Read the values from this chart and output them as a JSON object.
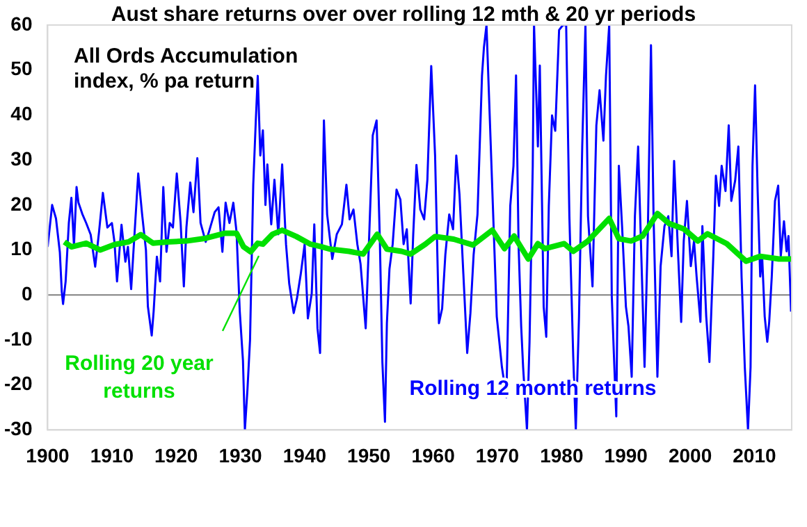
{
  "chart_data": {
    "type": "line",
    "title": "Aust share returns over over rolling 12 mth & 20 yr periods",
    "annotations": [
      "All Ords Accumulation index, % pa return"
    ],
    "xlim": [
      1900,
      2015.8
    ],
    "xticks": [
      1900,
      1910,
      1920,
      1930,
      1940,
      1950,
      1960,
      1970,
      1980,
      1990,
      2000,
      2010
    ],
    "ylim": [
      -30,
      60
    ],
    "yticks": [
      -30,
      -20,
      -10,
      0,
      10,
      20,
      30,
      40,
      50,
      60
    ],
    "grid": false,
    "legend": false,
    "marker": "none",
    "line_style": "solid",
    "ref_lines": [
      {
        "axis": "y",
        "value": 0,
        "color": "#808080"
      }
    ],
    "series": [
      {
        "name": "Rolling 12 month returns",
        "color": "#0000ff",
        "x": [
          1900.0,
          1900.4,
          1900.7,
          1901.3,
          1901.9,
          1902.2,
          1902.4,
          1902.8,
          1903.3,
          1903.7,
          1904.1,
          1904.5,
          1904.8,
          1905.4,
          1906.0,
          1906.7,
          1907.4,
          1908.0,
          1908.6,
          1909.3,
          1910.0,
          1910.4,
          1910.8,
          1911.5,
          1912.1,
          1912.5,
          1913.0,
          1913.4,
          1914.1,
          1914.7,
          1915.3,
          1915.6,
          1916.2,
          1916.5,
          1917.0,
          1917.5,
          1918.0,
          1918.5,
          1919.0,
          1919.5,
          1920.1,
          1920.7,
          1921.2,
          1921.6,
          1922.2,
          1922.7,
          1923.3,
          1923.8,
          1924.6,
          1925.1,
          1926.0,
          1926.6,
          1927.2,
          1927.7,
          1928.3,
          1928.9,
          1929.4,
          1929.9,
          1930.4,
          1930.7,
          1931.1,
          1931.5,
          1932.0,
          1932.4,
          1932.7,
          1933.1,
          1933.5,
          1933.9,
          1934.2,
          1934.8,
          1935.3,
          1935.9,
          1936.5,
          1937.1,
          1937.6,
          1938.3,
          1938.8,
          1939.4,
          1940.0,
          1940.5,
          1941.1,
          1941.5,
          1942.0,
          1942.4,
          1943.0,
          1943.5,
          1944.3,
          1945.0,
          1945.8,
          1946.5,
          1947.0,
          1947.6,
          1948.2,
          1948.7,
          1949.5,
          1950.0,
          1950.6,
          1951.2,
          1951.7,
          1952.1,
          1952.5,
          1952.8,
          1953.2,
          1953.7,
          1954.3,
          1954.9,
          1955.4,
          1955.9,
          1956.5,
          1956.9,
          1957.4,
          1958.0,
          1958.6,
          1959.1,
          1959.7,
          1960.3,
          1960.9,
          1961.4,
          1961.9,
          1962.5,
          1963.1,
          1963.6,
          1964.1,
          1964.7,
          1965.3,
          1965.8,
          1966.3,
          1966.9,
          1967.6,
          1967.9,
          1968.3,
          1968.8,
          1969.9,
          1970.7,
          1971.4,
          1972.0,
          1972.5,
          1972.9,
          1973.3,
          1973.7,
          1974.0,
          1974.6,
          1975.0,
          1975.5,
          1975.7,
          1976.3,
          1976.6,
          1977.2,
          1977.6,
          1978.0,
          1978.5,
          1979.0,
          1979.6,
          1980.2,
          1980.7,
          1981.2,
          1981.8,
          1982.2,
          1982.7,
          1983.2,
          1983.7,
          1984.1,
          1984.8,
          1985.4,
          1985.9,
          1986.5,
          1986.9,
          1987.4,
          1987.8,
          1988.2,
          1988.5,
          1988.9,
          1989.4,
          1990.0,
          1990.4,
          1990.9,
          1991.4,
          1991.9,
          1992.4,
          1992.9,
          1993.4,
          1993.9,
          1994.3,
          1994.9,
          1995.4,
          1996.0,
          1996.6,
          1997.1,
          1997.5,
          1998.1,
          1998.6,
          1999.0,
          1999.5,
          2000.1,
          2000.6,
          2001.0,
          2001.6,
          2001.9,
          2002.5,
          2003.0,
          2003.6,
          2004.0,
          2004.5,
          2004.9,
          2005.5,
          2006.0,
          2006.4,
          2007.0,
          2007.5,
          2008.0,
          2008.5,
          2009.0,
          2009.4,
          2009.7,
          2010.1,
          2010.5,
          2010.9,
          2011.2,
          2011.6,
          2012.0,
          2012.3,
          2012.7,
          2013.2,
          2013.7,
          2014.1,
          2014.6,
          2015.0,
          2015.3,
          2015.7
        ],
        "values": [
          10.7,
          16,
          20,
          17,
          9.5,
          0.8,
          -2,
          3,
          16,
          21.6,
          11,
          24,
          20.5,
          18,
          16,
          13.4,
          6.3,
          14,
          22.7,
          15,
          16,
          11.8,
          3,
          15.6,
          7.4,
          10.7,
          1.3,
          10.7,
          27,
          18,
          10,
          -2.5,
          -9,
          -3.6,
          8.5,
          3,
          24,
          9.6,
          16,
          15,
          27,
          16,
          1.9,
          15,
          25,
          18.4,
          30.4,
          16,
          11.8,
          14,
          18.4,
          19.5,
          9.6,
          20.5,
          16,
          20.5,
          14,
          -3.6,
          -14.6,
          -30,
          -21,
          -10,
          24.5,
          38.8,
          48.7,
          31,
          36.6,
          20,
          29,
          15.7,
          25.6,
          13.5,
          29,
          11.3,
          2.5,
          -4,
          -0.8,
          4.7,
          11.3,
          -5.2,
          0.3,
          15.7,
          -7.4,
          -12.9,
          38.8,
          17.9,
          8,
          13.5,
          15.7,
          24.5,
          16.8,
          19,
          11.3,
          6.9,
          -7.4,
          11.3,
          35.5,
          38.8,
          12.4,
          -15,
          -28.2,
          -6.3,
          5.8,
          11.3,
          23.4,
          21.2,
          11.3,
          14.6,
          -1.9,
          13.5,
          28.9,
          19,
          16.8,
          25.6,
          50.9,
          31,
          -6.3,
          -3,
          9,
          17.9,
          14.6,
          31,
          22.3,
          4.7,
          -12.9,
          -4,
          9,
          17.9,
          48.7,
          55,
          60,
          39.9,
          -4.8,
          -16,
          -22.7,
          19.8,
          28.7,
          48.8,
          10.8,
          -7,
          -16,
          -30,
          -10.4,
          28.7,
          60,
          33,
          51,
          -2.6,
          -9.3,
          19.8,
          39.9,
          36.5,
          58.9,
          60,
          60,
          17.5,
          -13.7,
          -30,
          -4.8,
          33,
          60,
          17.5,
          1.9,
          37.7,
          45.5,
          34.3,
          48.8,
          60,
          -0.3,
          -16,
          -27,
          28.7,
          15.3,
          -2.6,
          -7,
          -18.2,
          17.5,
          33,
          8.6,
          -16,
          13.1,
          55.5,
          17.5,
          -18.2,
          6.4,
          15.3,
          17.5,
          8.6,
          29.8,
          9.7,
          -6,
          12,
          20.9,
          6.4,
          12,
          4.1,
          -6,
          15.3,
          -4.8,
          -14.9,
          8.6,
          26.5,
          19.8,
          28.7,
          23.1,
          37.7,
          20.9,
          25.4,
          33,
          4.1,
          -16,
          -30,
          -16,
          28.7,
          46.6,
          23.1,
          4.1,
          8.6,
          -4.8,
          -10.4,
          -6,
          4.1,
          20.9,
          24.3,
          8.6,
          16.4,
          9.7,
          13.1,
          -3.7
        ]
      },
      {
        "name": "Rolling 20 year returns",
        "color": "#00e000",
        "x": [
          1902.6,
          1903.7,
          1906.0,
          1908.2,
          1910.4,
          1912.6,
          1914.5,
          1916.4,
          1918.6,
          1921.6,
          1924.6,
          1927.5,
          1929.4,
          1930.5,
          1931.6,
          1932.7,
          1933.5,
          1935.0,
          1936.5,
          1938.7,
          1940.9,
          1942.4,
          1943.9,
          1946.9,
          1949.1,
          1951.3,
          1952.8,
          1955.1,
          1956.5,
          1958.8,
          1960.3,
          1963.2,
          1966.2,
          1969.2,
          1971.1,
          1972.6,
          1974.8,
          1976.3,
          1977.4,
          1980.4,
          1981.8,
          1984.1,
          1987.4,
          1988.9,
          1990.8,
          1992.6,
          1994.9,
          1996.7,
          1999.0,
          2001.2,
          2002.7,
          2005.7,
          2008.7,
          2010.9,
          2013.8,
          2015.7
        ],
        "values": [
          11.8,
          10.7,
          11.5,
          10,
          11.2,
          11.8,
          13.4,
          11.5,
          11.8,
          12,
          12.6,
          13.7,
          13.7,
          10.7,
          9.6,
          11.5,
          11.3,
          13.5,
          14.4,
          13,
          11.3,
          10.8,
          10.2,
          9.7,
          9.1,
          13.5,
          10.2,
          9.7,
          9.1,
          11.3,
          13,
          12.4,
          11.1,
          14.4,
          10.3,
          13.1,
          8,
          11.4,
          10.3,
          11.4,
          9.7,
          12,
          17,
          12.5,
          12,
          13.1,
          18.1,
          15.9,
          14.7,
          12,
          13.6,
          11.4,
          7.5,
          8.6,
          8,
          8
        ]
      }
    ]
  }
}
